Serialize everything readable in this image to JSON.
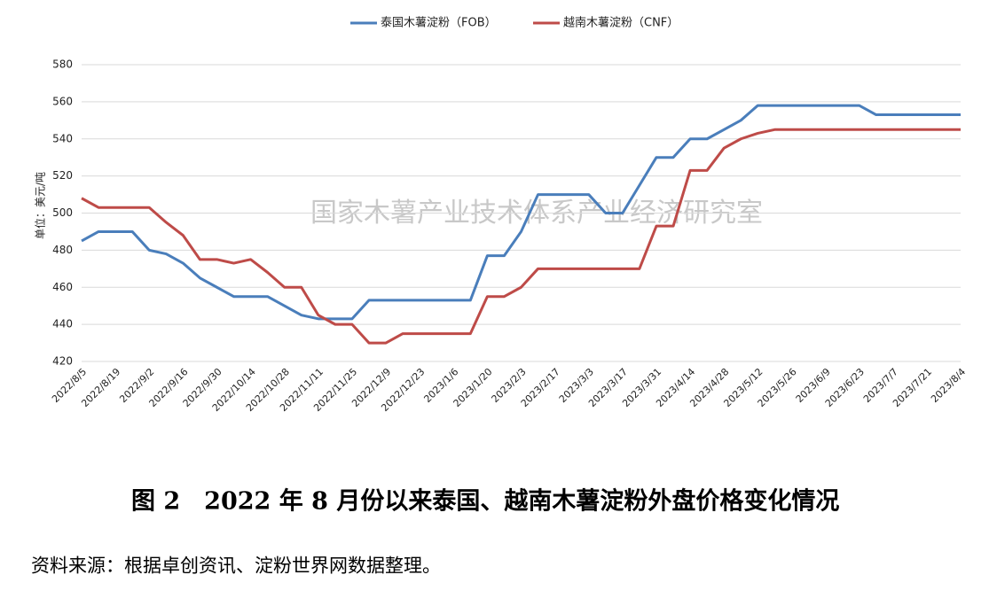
{
  "chart_data": {
    "type": "line",
    "y_label": "单位：美元/吨",
    "watermark": "国家木薯产业技术体系产业经济研究室",
    "categories": [
      "2022/8/5",
      null,
      "2022/8/19",
      null,
      "2022/9/2",
      null,
      "2022/9/16",
      null,
      "2022/9/30",
      null,
      "2022/10/14",
      null,
      "2022/10/28",
      null,
      "2022/11/11",
      null,
      "2022/11/25",
      null,
      "2022/12/9",
      null,
      "2022/12/23",
      null,
      "2023/1/6",
      null,
      "2023/1/20",
      null,
      "2023/2/3",
      null,
      "2023/2/17",
      null,
      "2023/3/3",
      null,
      "2023/3/17",
      null,
      "2023/3/31",
      null,
      "2023/4/14",
      null,
      "2023/4/28",
      null,
      "2023/5/12",
      null,
      "2023/5/26",
      null,
      "2023/6/9",
      null,
      "2023/6/23",
      null,
      "2023/7/7",
      null,
      "2023/7/21",
      null,
      "2023/8/4"
    ],
    "series": [
      {
        "name": "泰国木薯淀粉（FOB）",
        "color": "#4a7ebb",
        "values": [
          485,
          490,
          490,
          490,
          480,
          478,
          473,
          465,
          460,
          455,
          455,
          455,
          450,
          445,
          443,
          443,
          443,
          453,
          453,
          453,
          453,
          453,
          453,
          453,
          477,
          477,
          490,
          510,
          510,
          510,
          510,
          500,
          500,
          515,
          530,
          530,
          540,
          540,
          545,
          550,
          558,
          558,
          558,
          558,
          558,
          558,
          558,
          553,
          553,
          553,
          553,
          553,
          553
        ]
      },
      {
        "name": "越南木薯淀粉（CNF）",
        "color": "#be4b48",
        "values": [
          508,
          503,
          503,
          503,
          503,
          495,
          488,
          475,
          475,
          473,
          475,
          468,
          460,
          460,
          445,
          440,
          440,
          430,
          430,
          435,
          435,
          435,
          435,
          435,
          455,
          455,
          460,
          470,
          470,
          470,
          470,
          470,
          470,
          470,
          493,
          493,
          523,
          523,
          535,
          540,
          543,
          545,
          545,
          545,
          545,
          545,
          545,
          545,
          545,
          545,
          545,
          545,
          545
        ]
      }
    ],
    "ylim": [
      420,
      580
    ],
    "yticks": [
      420,
      440,
      460,
      480,
      500,
      520,
      540,
      560,
      580
    ],
    "grid": true,
    "legend": "top"
  },
  "caption": "图 2　2022 年 8 月份以来泰国、越南木薯淀粉外盘价格变化情况",
  "source": "资料来源：根据卓创资讯、淀粉世界网数据整理。"
}
